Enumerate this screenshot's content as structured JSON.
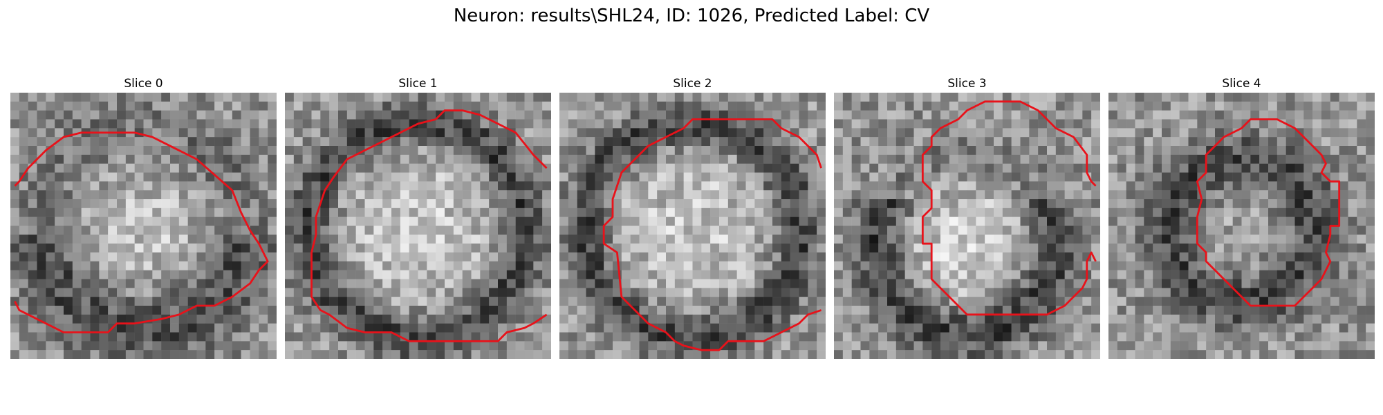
{
  "figure": {
    "title": "Neuron: results\\SHL24, ID: 1026, Predicted Label: CV"
  },
  "panels": [
    {
      "title": "Slice 0",
      "pattern": "bright-center",
      "contour": [
        [
          0.5,
          10.5
        ],
        [
          1,
          10
        ],
        [
          2,
          8.5
        ],
        [
          3,
          7.5
        ],
        [
          4,
          6.5
        ],
        [
          6,
          5
        ],
        [
          8,
          4.5
        ],
        [
          12,
          4.5
        ],
        [
          14,
          4.5
        ],
        [
          16,
          5
        ],
        [
          19,
          6.5
        ],
        [
          21,
          7.5
        ],
        [
          25,
          11
        ],
        [
          26,
          13.5
        ],
        [
          27,
          15.5
        ],
        [
          28,
          17
        ],
        [
          29,
          19
        ],
        [
          28,
          20
        ],
        [
          27,
          21.5
        ],
        [
          25,
          23
        ],
        [
          23,
          24
        ],
        [
          21,
          24
        ],
        [
          20,
          24.5
        ],
        [
          19,
          25
        ],
        [
          17,
          25.5
        ],
        [
          14,
          26
        ],
        [
          12,
          26
        ],
        [
          11,
          27
        ],
        [
          8,
          27
        ],
        [
          6,
          27
        ],
        [
          4,
          26
        ],
        [
          3,
          25.5
        ],
        [
          1,
          24.5
        ],
        [
          0.5,
          23.5
        ]
      ]
    },
    {
      "title": "Slice 1",
      "pattern": "ring",
      "contour": [
        [
          29.5,
          8.5
        ],
        [
          28,
          7
        ],
        [
          26,
          4.5
        ],
        [
          24,
          3.5
        ],
        [
          22,
          2.5
        ],
        [
          20,
          2
        ],
        [
          18,
          2
        ],
        [
          17,
          3
        ],
        [
          15,
          3.5
        ],
        [
          13,
          4.5
        ],
        [
          11,
          5.5
        ],
        [
          9,
          6.5
        ],
        [
          7,
          7.5
        ],
        [
          5.5,
          9.5
        ],
        [
          4.5,
          11
        ],
        [
          4,
          12.5
        ],
        [
          3.5,
          14
        ],
        [
          3.5,
          16
        ],
        [
          3,
          18
        ],
        [
          3,
          23
        ],
        [
          4,
          24.5
        ],
        [
          5,
          25
        ],
        [
          7,
          26.5
        ],
        [
          9,
          27
        ],
        [
          12,
          27
        ],
        [
          14,
          28
        ],
        [
          24,
          28
        ],
        [
          25,
          27
        ],
        [
          27,
          26.5
        ],
        [
          28,
          26
        ],
        [
          29.5,
          25
        ]
      ]
    },
    {
      "title": "Slice 2",
      "pattern": "ring",
      "contour": [
        [
          29.5,
          8.5
        ],
        [
          29,
          7
        ],
        [
          28,
          6
        ],
        [
          27,
          5
        ],
        [
          25,
          4
        ],
        [
          24,
          3
        ],
        [
          15,
          3
        ],
        [
          14,
          4
        ],
        [
          12,
          5
        ],
        [
          10,
          6
        ],
        [
          8,
          8
        ],
        [
          7,
          9
        ],
        [
          6.5,
          10.5
        ],
        [
          6,
          12
        ],
        [
          6,
          14
        ],
        [
          5,
          15
        ],
        [
          5,
          17
        ],
        [
          6.5,
          18
        ],
        [
          7,
          23
        ],
        [
          8,
          24
        ],
        [
          10,
          26
        ],
        [
          12,
          27
        ],
        [
          13,
          28
        ],
        [
          14,
          28.5
        ],
        [
          16,
          29
        ],
        [
          18,
          29
        ],
        [
          19,
          28
        ],
        [
          23,
          28
        ],
        [
          25,
          27
        ],
        [
          27,
          26
        ],
        [
          28,
          25
        ],
        [
          29.5,
          24.5
        ]
      ]
    },
    {
      "title": "Slice 3",
      "pattern": "ring-low",
      "contour": [
        [
          29.5,
          10.5
        ],
        [
          29,
          10
        ],
        [
          28.5,
          9
        ],
        [
          28.5,
          7
        ],
        [
          27,
          5
        ],
        [
          25,
          4
        ],
        [
          23,
          2
        ],
        [
          21,
          1
        ],
        [
          17,
          1
        ],
        [
          15,
          2
        ],
        [
          14,
          3
        ],
        [
          12,
          4
        ],
        [
          11,
          5
        ],
        [
          11,
          6
        ],
        [
          10,
          7
        ],
        [
          10,
          10
        ],
        [
          11,
          11
        ],
        [
          11,
          13
        ],
        [
          10,
          14
        ],
        [
          10,
          17
        ],
        [
          11,
          17
        ],
        [
          11,
          21
        ],
        [
          12,
          22
        ],
        [
          13,
          23
        ],
        [
          14,
          24
        ],
        [
          15,
          25
        ],
        [
          24,
          25
        ],
        [
          26,
          24
        ],
        [
          27,
          23
        ],
        [
          28,
          22
        ],
        [
          28.5,
          21
        ],
        [
          28.5,
          19
        ],
        [
          29,
          18
        ],
        [
          29.5,
          19
        ]
      ]
    },
    {
      "title": "Slice 4",
      "pattern": "dark-ring",
      "contour": [
        [
          25,
          10
        ],
        [
          24,
          9
        ],
        [
          24.5,
          8
        ],
        [
          24,
          7
        ],
        [
          23,
          6
        ],
        [
          22,
          5
        ],
        [
          21,
          4
        ],
        [
          19,
          3
        ],
        [
          16,
          3
        ],
        [
          15,
          4
        ],
        [
          14,
          4.5
        ],
        [
          13,
          5
        ],
        [
          12,
          6
        ],
        [
          11,
          7
        ],
        [
          11,
          9
        ],
        [
          10,
          10
        ],
        [
          10.5,
          12
        ],
        [
          10,
          14
        ],
        [
          10,
          17
        ],
        [
          11,
          18
        ],
        [
          11,
          19
        ],
        [
          12,
          20
        ],
        [
          13,
          21
        ],
        [
          14,
          22
        ],
        [
          15,
          23
        ],
        [
          16,
          24
        ],
        [
          21,
          24
        ],
        [
          22,
          23
        ],
        [
          23,
          22
        ],
        [
          24,
          21
        ],
        [
          25,
          19
        ],
        [
          24.5,
          18
        ],
        [
          25,
          16
        ],
        [
          25,
          15
        ],
        [
          26,
          15
        ],
        [
          26,
          12
        ],
        [
          26,
          10
        ],
        [
          25,
          10
        ]
      ]
    }
  ]
}
